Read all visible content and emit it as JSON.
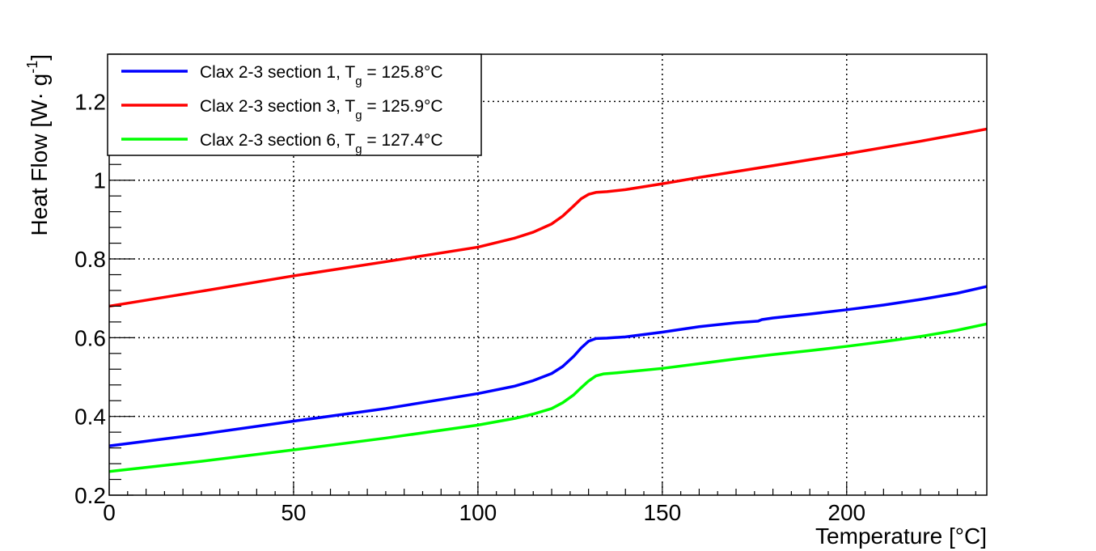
{
  "chart_data": {
    "type": "line",
    "xlabel": "Temperature [°C]",
    "ylabel": "Heat Flow [W· g",
    "ylabel_sup": "-1",
    "ylabel_close": "]",
    "xlim": [
      0,
      238
    ],
    "ylim": [
      0.2,
      1.32
    ],
    "grid": true,
    "legend_position": "top-left",
    "xticks": [
      0,
      50,
      100,
      150,
      200
    ],
    "xtick_labels": [
      "0",
      "50",
      "100",
      "150",
      "200"
    ],
    "yticks": [
      0.2,
      0.4,
      0.6,
      0.8,
      1.0,
      1.2
    ],
    "ytick_labels": [
      "0.2",
      "0.4",
      "0.6",
      "0.8",
      "1",
      "1.2"
    ],
    "series": [
      {
        "name": "Clax 2-3 section 1",
        "tg_label": "T",
        "tg_sub": "g",
        "tg_value": " = 125.8°C",
        "prefix": "Clax 2-3 section 1, ",
        "color": "#0000ff",
        "x": [
          0,
          25,
          50,
          75,
          100,
          110,
          115,
          120,
          123,
          126,
          128,
          130,
          132,
          135,
          140,
          150,
          160,
          170,
          176,
          177,
          180,
          190,
          200,
          210,
          220,
          230,
          238
        ],
        "y": [
          0.325,
          0.355,
          0.388,
          0.42,
          0.458,
          0.477,
          0.491,
          0.509,
          0.527,
          0.553,
          0.574,
          0.591,
          0.598,
          0.599,
          0.602,
          0.614,
          0.628,
          0.638,
          0.642,
          0.646,
          0.65,
          0.66,
          0.671,
          0.683,
          0.697,
          0.713,
          0.73
        ]
      },
      {
        "name": "Clax 2-3 section 3",
        "tg_label": "T",
        "tg_sub": "g",
        "tg_value": " = 125.9°C",
        "prefix": "Clax 2-3 section 3, ",
        "color": "#ff0000",
        "x": [
          0,
          25,
          50,
          75,
          100,
          110,
          115,
          120,
          123,
          126,
          128,
          130,
          132,
          135,
          140,
          150,
          160,
          170,
          180,
          190,
          200,
          210,
          220,
          230,
          238
        ],
        "y": [
          0.68,
          0.718,
          0.757,
          0.793,
          0.83,
          0.853,
          0.868,
          0.889,
          0.909,
          0.935,
          0.953,
          0.964,
          0.969,
          0.971,
          0.976,
          0.991,
          1.007,
          1.022,
          1.037,
          1.052,
          1.067,
          1.083,
          1.099,
          1.116,
          1.13
        ]
      },
      {
        "name": "Clax 2-3 section 6",
        "tg_label": "T",
        "tg_sub": "g",
        "tg_value": " = 127.4°C",
        "prefix": "Clax 2-3 section 6, ",
        "color": "#00ff00",
        "x": [
          0,
          25,
          50,
          75,
          100,
          110,
          115,
          120,
          123,
          126,
          128,
          130,
          132,
          134,
          138,
          150,
          160,
          170,
          180,
          190,
          200,
          210,
          220,
          230,
          238
        ],
        "y": [
          0.26,
          0.286,
          0.315,
          0.345,
          0.378,
          0.395,
          0.406,
          0.42,
          0.435,
          0.455,
          0.473,
          0.49,
          0.503,
          0.508,
          0.511,
          0.522,
          0.534,
          0.546,
          0.557,
          0.567,
          0.578,
          0.59,
          0.603,
          0.619,
          0.635
        ]
      }
    ]
  }
}
